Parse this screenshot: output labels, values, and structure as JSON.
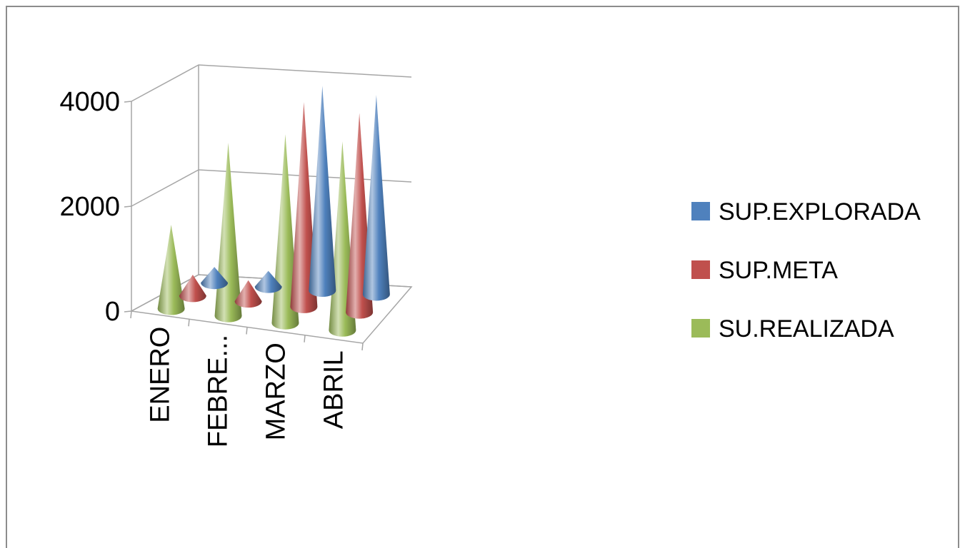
{
  "chart_data": {
    "type": "bar",
    "bar_shape": "cone",
    "three_d": true,
    "categories": [
      "ENERO",
      "FEBRE...",
      "MARZO",
      "ABRIL"
    ],
    "series": [
      {
        "name": "SUP.EXPLORADA",
        "values": [
          300,
          300,
          3900,
          3800
        ]
      },
      {
        "name": "SUP.META",
        "values": [
          400,
          400,
          3900,
          3800
        ]
      },
      {
        "name": "SU.REALIZADA",
        "values": [
          1600,
          3300,
          3600,
          3600
        ]
      }
    ],
    "ylim": [
      0,
      4000
    ],
    "yticks": [
      "0",
      "2000",
      "4000"
    ],
    "gridlines": true,
    "legend_position": "right",
    "colors": [
      "#4f81bd",
      "#c0504d",
      "#9bbb59"
    ]
  }
}
